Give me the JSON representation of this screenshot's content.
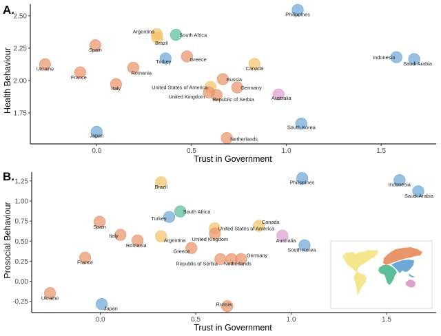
{
  "colors": {
    "Europe": "#E8956B",
    "Americas": "#F2C36B",
    "Africa": "#5DBE9A",
    "Asia": "#6FA8D6",
    "Oceania": "#DDA0CF"
  },
  "chart_data": [
    {
      "type": "scatter",
      "panel": "A.",
      "title": "",
      "xlabel": "Trust in Government",
      "ylabel": "Health Behaviour",
      "xlim": [
        -0.35,
        1.79
      ],
      "ylim": [
        1.51,
        2.59
      ],
      "xticks": [
        0.0,
        0.5,
        1.0,
        1.5
      ],
      "xtick_labels": [
        "0.0",
        "0.5",
        "1.0",
        "1.5"
      ],
      "yticks": [
        1.75,
        2.0,
        2.25,
        2.5
      ],
      "ytick_labels": [
        "1.75",
        "2.00",
        "2.25",
        "2.50"
      ],
      "grid": false,
      "color_by": "region",
      "points": [
        {
          "label": "Philippines",
          "region": "Asia",
          "x": 1.06,
          "y": 2.545
        },
        {
          "label": "Argentina",
          "region": "Americas",
          "x": 0.316,
          "y": 2.358
        },
        {
          "label": "Brazil",
          "region": "Americas",
          "x": 0.32,
          "y": 2.33
        },
        {
          "label": "South Africa",
          "region": "Africa",
          "x": 0.418,
          "y": 2.353
        },
        {
          "label": "Spain",
          "region": "Europe",
          "x": -0.007,
          "y": 2.272
        },
        {
          "label": "Greece",
          "region": "Europe",
          "x": 0.476,
          "y": 2.186
        },
        {
          "label": "Turkey",
          "region": "Asia",
          "x": 0.363,
          "y": 2.17
        },
        {
          "label": "Ukraine",
          "region": "Europe",
          "x": -0.272,
          "y": 2.125
        },
        {
          "label": "France",
          "region": "Europe",
          "x": -0.087,
          "y": 2.063
        },
        {
          "label": "Romania",
          "region": "Europe",
          "x": 0.193,
          "y": 2.098
        },
        {
          "label": "Italy",
          "region": "Europe",
          "x": 0.102,
          "y": 1.972
        },
        {
          "label": "Canada",
          "region": "Americas",
          "x": 0.832,
          "y": 2.128
        },
        {
          "label": "Russia",
          "region": "Europe",
          "x": 0.665,
          "y": 2.01
        },
        {
          "label": "Germany",
          "region": "Europe",
          "x": 0.741,
          "y": 1.946
        },
        {
          "label": "United States of America",
          "region": "Americas",
          "x": 0.6,
          "y": 1.95
        },
        {
          "label": "United Kingdom",
          "region": "Europe",
          "x": 0.592,
          "y": 1.908
        },
        {
          "label": "Republic of Serbia",
          "region": "Europe",
          "x": 0.632,
          "y": 1.887
        },
        {
          "label": "Australia",
          "region": "Oceania",
          "x": 0.959,
          "y": 1.892
        },
        {
          "label": "Indonesia",
          "region": "Asia",
          "x": 1.58,
          "y": 2.18
        },
        {
          "label": "Saudi Arabia",
          "region": "Asia",
          "x": 1.674,
          "y": 2.165
        },
        {
          "label": "South Korea",
          "region": "Asia",
          "x": 1.079,
          "y": 1.667
        },
        {
          "label": "Japan",
          "region": "Asia",
          "x": 0.0,
          "y": 1.603
        },
        {
          "label": "Netherlands",
          "region": "Europe",
          "x": 0.686,
          "y": 1.555
        }
      ]
    },
    {
      "type": "scatter",
      "panel": "B.",
      "title": "",
      "xlabel": "Trust in Government",
      "ylabel": "Prosocial Behaviour",
      "xlim": [
        -0.36,
        1.76
      ],
      "ylim": [
        -0.39,
        1.36
      ],
      "xticks": [
        0.0,
        0.5,
        1.0,
        1.5
      ],
      "xtick_labels": [
        "0.0",
        "0.5",
        "1.0",
        "1.5"
      ],
      "yticks": [
        -0.25,
        0.0,
        0.25,
        0.5,
        0.75,
        1.0,
        1.25
      ],
      "ytick_labels": [
        "-0.25",
        "0.00",
        "0.25",
        "0.50",
        "0.75",
        "1.00",
        "1.25"
      ],
      "grid": false,
      "color_by": "region",
      "inset": "world map colored by region (Americas, Europe, Africa, Asia, Oceania)",
      "inset_placement": "bottom-right",
      "points": [
        {
          "label": "Brazil",
          "region": "Americas",
          "x": 0.318,
          "y": 1.233
        },
        {
          "label": "Philippines",
          "region": "Asia",
          "x": 1.058,
          "y": 1.285
        },
        {
          "label": "Indonesia",
          "region": "Asia",
          "x": 1.568,
          "y": 1.26
        },
        {
          "label": "Saudi Arabia",
          "region": "Asia",
          "x": 1.666,
          "y": 1.121
        },
        {
          "label": "South Africa",
          "region": "Africa",
          "x": 0.419,
          "y": 0.87
        },
        {
          "label": "Turkey",
          "region": "Asia",
          "x": 0.361,
          "y": 0.802
        },
        {
          "label": "Spain",
          "region": "Europe",
          "x": -0.004,
          "y": 0.741
        },
        {
          "label": "Italy",
          "region": "Europe",
          "x": 0.105,
          "y": 0.578
        },
        {
          "label": "Romania",
          "region": "Europe",
          "x": 0.195,
          "y": 0.509
        },
        {
          "label": "Argentina",
          "region": "Americas",
          "x": 0.318,
          "y": 0.56
        },
        {
          "label": "Canada",
          "region": "Americas",
          "x": 0.831,
          "y": 0.69
        },
        {
          "label": "United States of America",
          "region": "Americas",
          "x": 0.6,
          "y": 0.66
        },
        {
          "label": "United Kingdom",
          "region": "Europe",
          "x": 0.6,
          "y": 0.595
        },
        {
          "label": "Australia",
          "region": "Oceania",
          "x": 0.954,
          "y": 0.569
        },
        {
          "label": "South Korea",
          "region": "Asia",
          "x": 1.07,
          "y": 0.448
        },
        {
          "label": "Greece",
          "region": "Europe",
          "x": 0.477,
          "y": 0.414
        },
        {
          "label": "France",
          "region": "Europe",
          "x": -0.08,
          "y": 0.293
        },
        {
          "label": "Republic of Serbia",
          "region": "Europe",
          "x": 0.629,
          "y": 0.276
        },
        {
          "label": "Netherlands",
          "region": "Europe",
          "x": 0.687,
          "y": 0.276
        },
        {
          "label": "Germany",
          "region": "Europe",
          "x": 0.737,
          "y": 0.276
        },
        {
          "label": "Ukraine",
          "region": "Europe",
          "x": -0.264,
          "y": -0.147
        },
        {
          "label": "Japan",
          "region": "Asia",
          "x": 0.007,
          "y": -0.284
        },
        {
          "label": "Russia",
          "region": "Europe",
          "x": 0.665,
          "y": -0.31
        }
      ]
    }
  ]
}
